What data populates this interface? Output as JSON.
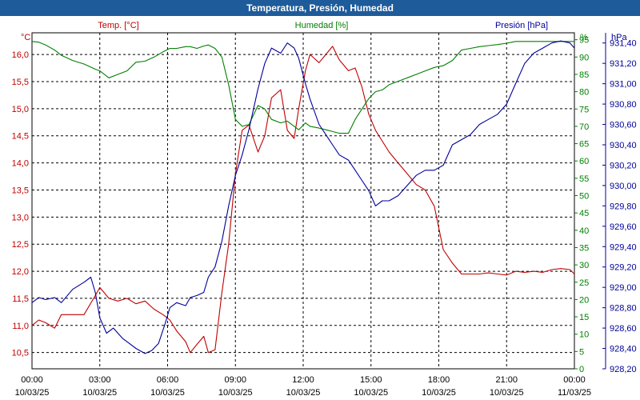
{
  "window_title": "Temperatura, Presión, Humedad",
  "chart_data": {
    "type": "line",
    "title": "Temperatura, Presión, Humedad",
    "x_ticks": [
      {
        "time": "00:00",
        "date": "10/03/25"
      },
      {
        "time": "03:00",
        "date": "10/03/25"
      },
      {
        "time": "06:00",
        "date": "10/03/25"
      },
      {
        "time": "09:00",
        "date": "10/03/25"
      },
      {
        "time": "12:00",
        "date": "10/03/25"
      },
      {
        "time": "15:00",
        "date": "10/03/25"
      },
      {
        "time": "18:00",
        "date": "10/03/25"
      },
      {
        "time": "21:00",
        "date": "10/03/25"
      },
      {
        "time": "00:00",
        "date": "11/03/25"
      }
    ],
    "x_range_hours": [
      0,
      24
    ],
    "grid": true,
    "axes": {
      "temperature": {
        "unit": "°C",
        "label": "Temp. [°C]",
        "color": "#c00000",
        "range": [
          10.2,
          16.4
        ],
        "ticks": [
          "10,5",
          "11,0",
          "11,5",
          "12,0",
          "12,5",
          "13,0",
          "13,5",
          "14,0",
          "14,5",
          "15,0",
          "15,5",
          "16,0"
        ]
      },
      "humidity": {
        "unit": "%",
        "label": "Humedad [%]",
        "color": "#008000",
        "range": [
          0,
          97
        ],
        "ticks": [
          "0",
          "5",
          "10",
          "15",
          "20",
          "25",
          "30",
          "35",
          "40",
          "45",
          "50",
          "55",
          "60",
          "65",
          "70",
          "75",
          "80",
          "85",
          "90",
          "95"
        ]
      },
      "pressure": {
        "unit": "hPa",
        "label": "Presión [hPa]",
        "color": "#000099",
        "range": [
          928.2,
          931.5
        ],
        "ticks": [
          "928,20",
          "928,40",
          "928,60",
          "928,80",
          "929,00",
          "929,20",
          "929,40",
          "929,60",
          "929,80",
          "930,00",
          "930,20",
          "930,40",
          "930,60",
          "930,80",
          "931,00",
          "931,20",
          "931,40"
        ]
      }
    },
    "series": [
      {
        "name": "Temp. [°C]",
        "axis": "temperature",
        "x": [
          0,
          0.3,
          0.6,
          1,
          1.3,
          1.8,
          2.3,
          2.8,
          3.0,
          3.4,
          3.8,
          4.2,
          4.6,
          5.0,
          5.4,
          5.8,
          6.1,
          6.4,
          6.8,
          7.0,
          7.3,
          7.6,
          7.8,
          8.1,
          8.4,
          8.7,
          9.0,
          9.3,
          9.6,
          10.0,
          10.3,
          10.6,
          11.0,
          11.3,
          11.6,
          11.8,
          12.1,
          12.3,
          12.7,
          13.0,
          13.3,
          13.6,
          14.0,
          14.3,
          14.6,
          14.9,
          15.2,
          15.5,
          15.8,
          16.2,
          16.6,
          17.0,
          17.4,
          17.8,
          18.2,
          18.6,
          19.0,
          19.4,
          19.8,
          20.2,
          20.6,
          21.0,
          21.4,
          21.8,
          22.2,
          22.6,
          23.0,
          23.4,
          23.8,
          24.0
        ],
        "values": [
          11.0,
          11.1,
          11.05,
          10.95,
          11.2,
          11.2,
          11.2,
          11.55,
          11.7,
          11.5,
          11.45,
          11.5,
          11.4,
          11.45,
          11.3,
          11.2,
          11.1,
          10.9,
          10.7,
          10.5,
          10.65,
          10.8,
          10.5,
          10.55,
          11.6,
          12.5,
          13.8,
          14.6,
          14.7,
          14.2,
          14.5,
          15.2,
          15.35,
          14.6,
          14.45,
          15.0,
          15.7,
          16.0,
          15.85,
          16.0,
          16.15,
          15.9,
          15.7,
          15.75,
          15.4,
          14.9,
          14.6,
          14.4,
          14.2,
          14.0,
          13.8,
          13.6,
          13.5,
          13.2,
          12.4,
          12.15,
          11.95,
          11.95,
          11.95,
          11.97,
          11.95,
          11.93,
          12.0,
          11.98,
          12.0,
          11.98,
          12.03,
          12.05,
          12.03,
          11.95
        ]
      },
      {
        "name": "Humedad [%]",
        "axis": "humidity",
        "x": [
          0,
          0.3,
          0.6,
          1.0,
          1.3,
          1.8,
          2.3,
          2.8,
          3.0,
          3.4,
          3.8,
          4.2,
          4.6,
          5.0,
          5.4,
          5.8,
          6.1,
          6.4,
          6.8,
          7.0,
          7.3,
          7.6,
          7.8,
          8.1,
          8.4,
          8.7,
          9.0,
          9.3,
          9.6,
          10.0,
          10.3,
          10.6,
          11.0,
          11.3,
          11.6,
          11.8,
          12.1,
          12.3,
          12.7,
          13.0,
          13.3,
          13.6,
          14.0,
          14.3,
          14.6,
          14.9,
          15.2,
          15.5,
          15.8,
          16.2,
          16.6,
          17.0,
          17.4,
          17.8,
          18.2,
          18.6,
          19.0,
          19.4,
          19.8,
          20.2,
          20.6,
          21.0,
          21.4,
          21.8,
          22.2,
          22.6,
          23.0,
          23.4,
          23.8,
          24.0
        ],
        "values": [
          94.5,
          94.3,
          93.5,
          92,
          90.5,
          89,
          88,
          86.5,
          86,
          84,
          85,
          86,
          88.5,
          88.8,
          90,
          91.5,
          92.5,
          92.5,
          93,
          93,
          92.5,
          93.2,
          93.5,
          92.5,
          90,
          82,
          72,
          70,
          70.5,
          76,
          75,
          72,
          71,
          71.5,
          70,
          69,
          71,
          70,
          69.5,
          69,
          68.5,
          68,
          68,
          72,
          75,
          78,
          80,
          80.5,
          82,
          83,
          84,
          85,
          86,
          87,
          87.5,
          89,
          92,
          92.5,
          93,
          93.3,
          93.6,
          94,
          94.5,
          94.5,
          94.5,
          94.5,
          94.5,
          94.5,
          94.5,
          94.5
        ]
      },
      {
        "name": "Presión [hPa]",
        "axis": "pressure",
        "x": [
          0,
          0.3,
          0.6,
          1.0,
          1.3,
          1.8,
          2.3,
          2.6,
          2.8,
          3.0,
          3.3,
          3.6,
          4.0,
          4.3,
          4.6,
          5.0,
          5.3,
          5.6,
          5.9,
          6.1,
          6.4,
          6.8,
          7.0,
          7.3,
          7.6,
          7.8,
          8.1,
          8.4,
          8.7,
          9.0,
          9.3,
          9.6,
          10.0,
          10.3,
          10.6,
          11.0,
          11.3,
          11.6,
          11.8,
          12.1,
          12.3,
          12.7,
          13.0,
          13.3,
          13.6,
          14.0,
          14.3,
          14.6,
          14.9,
          15.2,
          15.5,
          15.8,
          16.2,
          16.6,
          17.0,
          17.4,
          17.8,
          18.2,
          18.6,
          19.0,
          19.4,
          19.8,
          20.2,
          20.6,
          21.0,
          21.4,
          21.8,
          22.2,
          22.6,
          23.0,
          23.4,
          23.8,
          24.0
        ],
        "values": [
          928.85,
          928.9,
          928.88,
          928.9,
          928.85,
          928.98,
          929.05,
          929.1,
          928.95,
          928.7,
          928.55,
          928.6,
          928.5,
          928.45,
          928.4,
          928.35,
          928.38,
          928.45,
          928.65,
          928.8,
          928.85,
          928.82,
          928.9,
          928.92,
          928.95,
          929.1,
          929.2,
          929.45,
          929.8,
          930.1,
          930.3,
          930.55,
          930.95,
          931.2,
          931.35,
          931.3,
          931.4,
          931.35,
          931.25,
          931.0,
          930.85,
          930.6,
          930.5,
          930.4,
          930.3,
          930.25,
          930.15,
          930.05,
          929.95,
          929.8,
          929.85,
          929.85,
          929.9,
          930.0,
          930.1,
          930.15,
          930.15,
          930.2,
          930.4,
          930.45,
          930.5,
          930.6,
          930.65,
          930.7,
          930.8,
          931.0,
          931.2,
          931.3,
          931.35,
          931.4,
          931.42,
          931.4,
          931.35
        ]
      }
    ]
  }
}
